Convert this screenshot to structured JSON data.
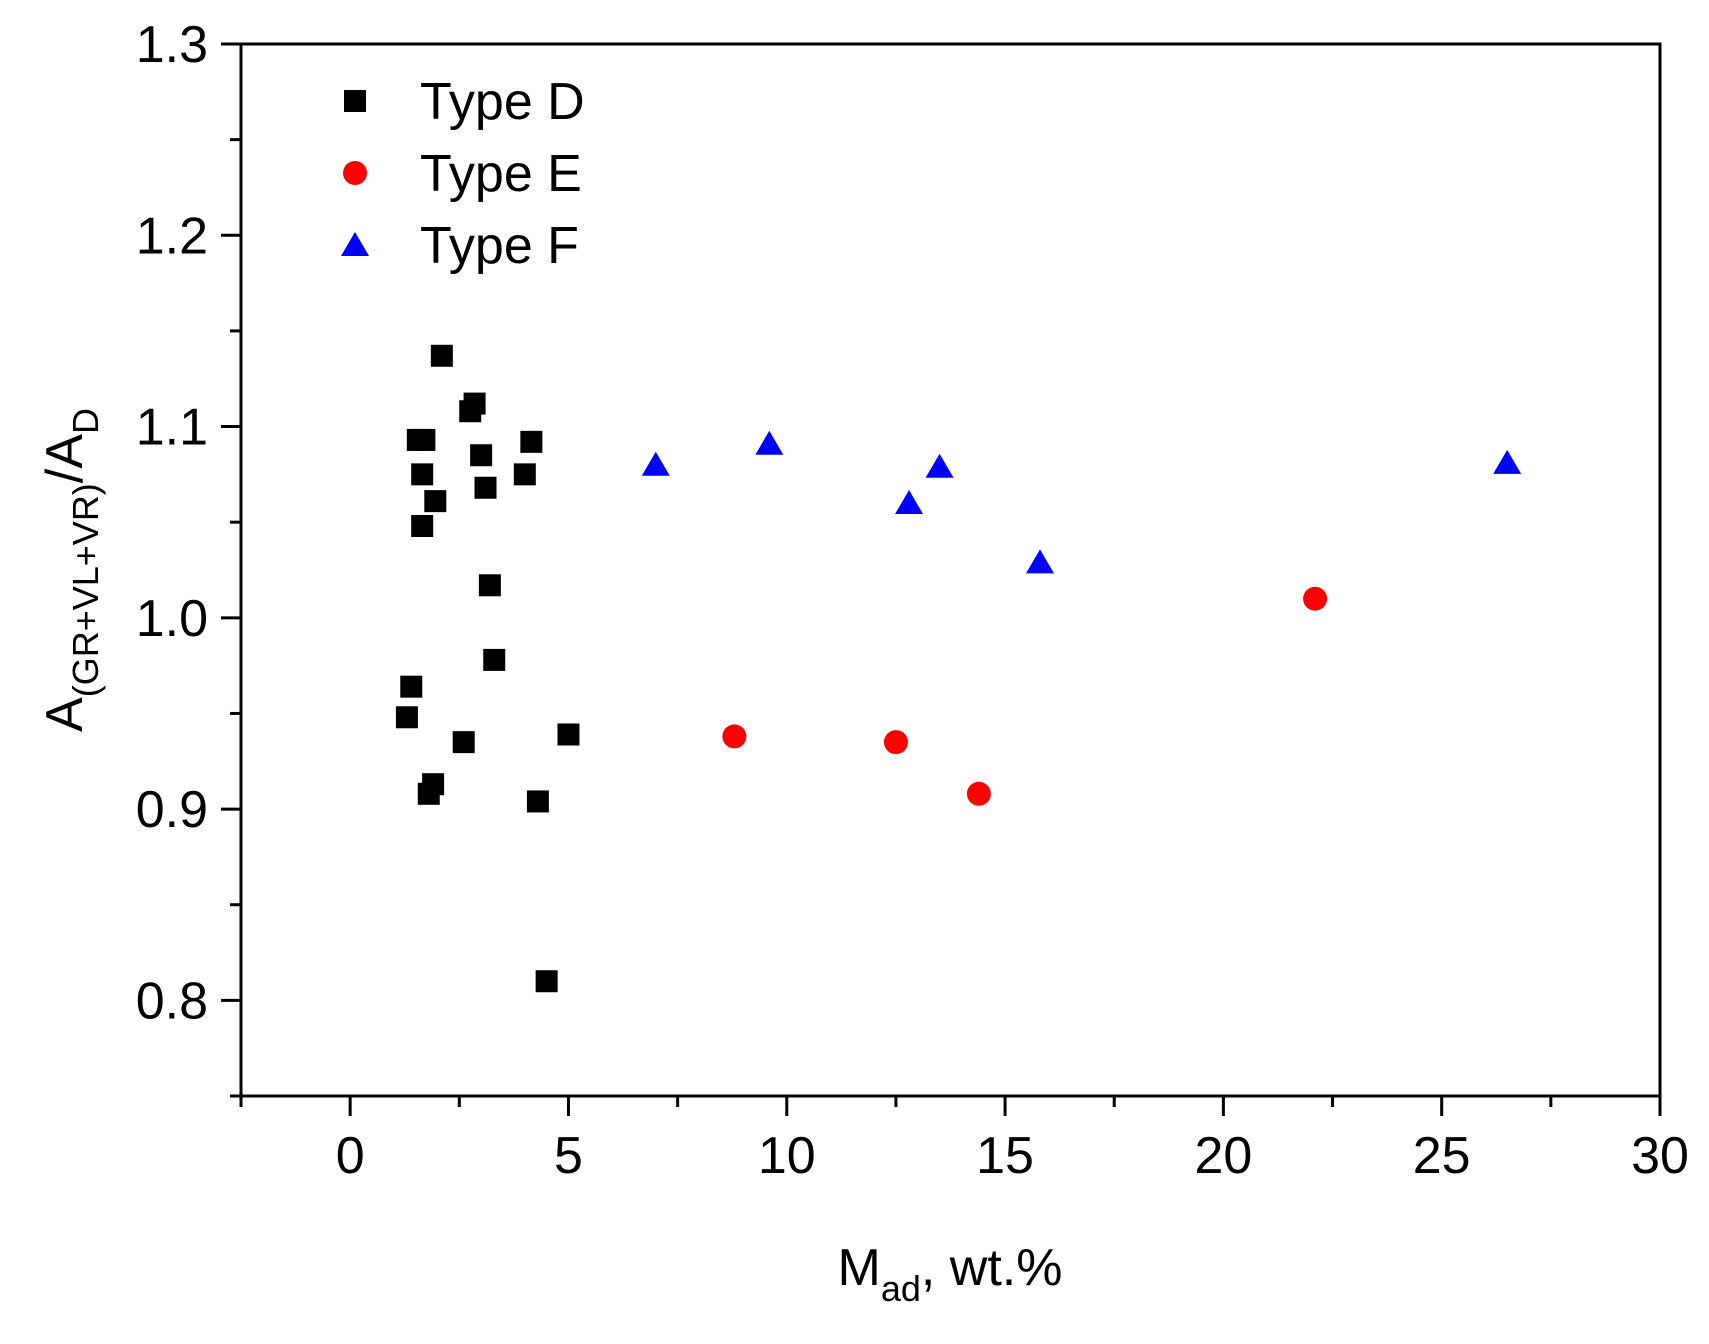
{
  "chart_data": {
    "type": "scatter",
    "title": "",
    "xlabel": {
      "main": "M",
      "sub": "ad",
      "suffix": ", wt.%"
    },
    "ylabel": {
      "main": "A",
      "sub1": "(GR+VL+VR)",
      "mid": "/A",
      "sub2": "D"
    },
    "xlim": [
      -2.5,
      30
    ],
    "ylim": [
      0.75,
      1.3
    ],
    "xticks": [
      0,
      5,
      10,
      15,
      20,
      25,
      30
    ],
    "xtick_labels": [
      "0",
      "5",
      "10",
      "15",
      "20",
      "25",
      "30"
    ],
    "yticks": [
      0.8,
      0.9,
      1.0,
      1.1,
      1.2,
      1.3
    ],
    "ytick_labels": [
      "0.8",
      "0.9",
      "1.0",
      "1.1",
      "1.2",
      "1.3"
    ],
    "grid": false,
    "legend_position": "top-left",
    "series": [
      {
        "name": "Type D",
        "marker": "square",
        "color": "#000000",
        "points": [
          {
            "x": 2.1,
            "y": 1.137
          },
          {
            "x": 2.75,
            "y": 1.108
          },
          {
            "x": 2.85,
            "y": 1.112
          },
          {
            "x": 1.55,
            "y": 1.093
          },
          {
            "x": 1.7,
            "y": 1.093
          },
          {
            "x": 4.15,
            "y": 1.092
          },
          {
            "x": 3.0,
            "y": 1.085
          },
          {
            "x": 1.65,
            "y": 1.075
          },
          {
            "x": 4.0,
            "y": 1.075
          },
          {
            "x": 3.1,
            "y": 1.068
          },
          {
            "x": 1.95,
            "y": 1.061
          },
          {
            "x": 1.65,
            "y": 1.048
          },
          {
            "x": 3.2,
            "y": 1.017
          },
          {
            "x": 3.3,
            "y": 0.978
          },
          {
            "x": 1.4,
            "y": 0.964
          },
          {
            "x": 1.3,
            "y": 0.948
          },
          {
            "x": 5.0,
            "y": 0.939
          },
          {
            "x": 2.6,
            "y": 0.935
          },
          {
            "x": 1.9,
            "y": 0.913
          },
          {
            "x": 1.8,
            "y": 0.908
          },
          {
            "x": 4.3,
            "y": 0.904
          },
          {
            "x": 4.5,
            "y": 0.81
          }
        ]
      },
      {
        "name": "Type E",
        "marker": "circle",
        "color": "#ff0000",
        "points": [
          {
            "x": 8.8,
            "y": 0.938
          },
          {
            "x": 12.5,
            "y": 0.935
          },
          {
            "x": 14.4,
            "y": 0.908
          },
          {
            "x": 22.1,
            "y": 1.01
          }
        ]
      },
      {
        "name": "Type F",
        "marker": "triangle",
        "color": "#0000ff",
        "points": [
          {
            "x": 7.0,
            "y": 1.08
          },
          {
            "x": 9.6,
            "y": 1.091
          },
          {
            "x": 12.8,
            "y": 1.06
          },
          {
            "x": 13.5,
            "y": 1.079
          },
          {
            "x": 15.8,
            "y": 1.029
          },
          {
            "x": 26.5,
            "y": 1.081
          }
        ]
      }
    ]
  }
}
